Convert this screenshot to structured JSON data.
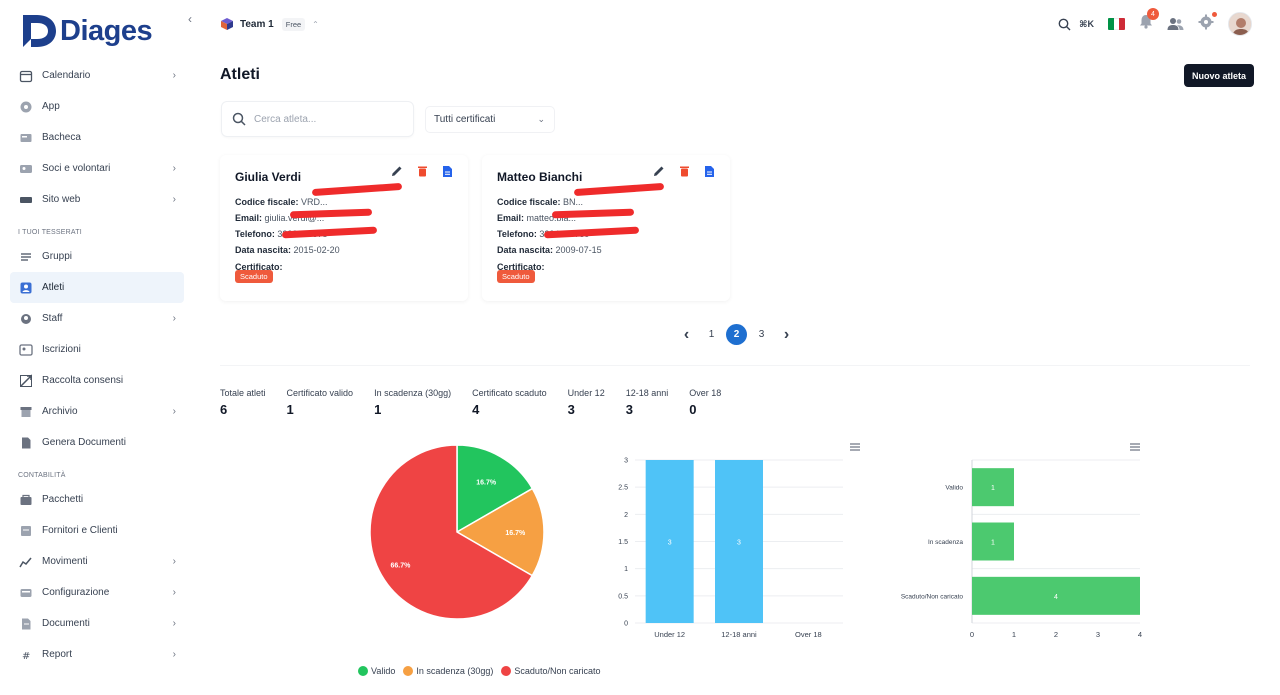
{
  "app": {
    "brand": "Diages"
  },
  "sidebar": {
    "collapse_icon": "chevron-left-icon",
    "items_top": [
      {
        "label": "Calendario",
        "icon": "calendar-icon",
        "has_children": true
      },
      {
        "label": "App",
        "icon": "app-icon",
        "has_children": false
      },
      {
        "label": "Bacheca",
        "icon": "board-icon",
        "has_children": false
      },
      {
        "label": "Soci e volontari",
        "icon": "users-icon",
        "has_children": true
      },
      {
        "label": "Sito web",
        "icon": "globe-icon",
        "has_children": true
      }
    ],
    "section_tesserati": "I TUOI TESSERATI",
    "items_tesserati": [
      {
        "label": "Gruppi",
        "icon": "groups-icon",
        "has_children": false,
        "active": false
      },
      {
        "label": "Atleti",
        "icon": "athlete-icon",
        "has_children": false,
        "active": true
      },
      {
        "label": "Staff",
        "icon": "staff-icon",
        "has_children": true,
        "active": false
      },
      {
        "label": "Iscrizioni",
        "icon": "registration-icon",
        "has_children": false,
        "active": false
      },
      {
        "label": "Raccolta consensi",
        "icon": "consent-icon",
        "has_children": false,
        "active": false
      },
      {
        "label": "Archivio",
        "icon": "archive-icon",
        "has_children": true,
        "active": false
      },
      {
        "label": "Genera Documenti",
        "icon": "document-icon",
        "has_children": false,
        "active": false
      }
    ],
    "section_contabilita": "CONTABILITÀ",
    "items_contabilita": [
      {
        "label": "Pacchetti",
        "icon": "package-icon",
        "has_children": false
      },
      {
        "label": "Fornitori e Clienti",
        "icon": "suppliers-icon",
        "has_children": false
      },
      {
        "label": "Movimenti",
        "icon": "transactions-icon",
        "has_children": true
      },
      {
        "label": "Configurazione",
        "icon": "config-icon",
        "has_children": true
      },
      {
        "label": "Documenti",
        "icon": "documents-icon",
        "has_children": true
      },
      {
        "label": "Report",
        "icon": "report-icon",
        "has_children": true
      }
    ]
  },
  "topbar": {
    "team_name": "Team 1",
    "plan": "Free",
    "shortcut": "⌘K",
    "notifications_count": "4",
    "colors": {
      "flag_green": "#009246",
      "flag_white": "#ffffff",
      "flag_red": "#ce2b37",
      "badge": "#ef5a3c"
    }
  },
  "main": {
    "title": "Atleti",
    "new_button": "Nuovo atleta",
    "search_placeholder": "Cerca atleta...",
    "filter_value": "Tutti certificati",
    "labels": {
      "codice_fiscale": "Codice fiscale:",
      "email": "Email:",
      "telefono": "Telefono:",
      "data_nascita": "Data nascita:",
      "certificato": "Certificato:"
    },
    "cards": [
      {
        "name": "Giulia Verdi",
        "codice_fiscale": "VRD...",
        "email": "giulia.verdi@...",
        "telefono": "3333345678",
        "data_nascita": "2015-02-20",
        "certificato": "Scaduto"
      },
      {
        "name": "Matteo Bianchi",
        "codice_fiscale": "BN...",
        "email": "matteo.bia...",
        "telefono": "3334456789",
        "data_nascita": "2009-07-15",
        "certificato": "Scaduto"
      }
    ],
    "pagination": {
      "pages": [
        "1",
        "2",
        "3"
      ],
      "current": "2"
    },
    "stats": [
      {
        "label": "Totale atleti",
        "value": "6"
      },
      {
        "label": "Certificato valido",
        "value": "1"
      },
      {
        "label": "In scadenza (30gg)",
        "value": "1"
      },
      {
        "label": "Certificato scaduto",
        "value": "4"
      },
      {
        "label": "Under 12",
        "value": "3"
      },
      {
        "label": "12-18 anni",
        "value": "3"
      },
      {
        "label": "Over 18",
        "value": "0"
      }
    ]
  },
  "chart_data": [
    {
      "type": "pie",
      "labels": [
        "Valido",
        "In scadenza (30gg)",
        "Scaduto/Non caricato"
      ],
      "values": [
        16.7,
        16.7,
        66.7
      ],
      "data_labels": [
        "16.7%",
        "16.7%",
        "66.7%"
      ],
      "colors": [
        "#22c55e",
        "#f6a043",
        "#ef4444"
      ],
      "legend": "bottom"
    },
    {
      "type": "bar",
      "categories": [
        "Under 12",
        "12-18 anni",
        "Over 18"
      ],
      "values": [
        3,
        3,
        0
      ],
      "ylim": [
        0,
        3
      ],
      "yticks": [
        "0",
        "0.5",
        "1",
        "1.5",
        "2",
        "2.5",
        "3"
      ],
      "color": "#4fc3f7",
      "grid": true
    },
    {
      "type": "bar",
      "orientation": "horizontal",
      "categories": [
        "Valido",
        "In scadenza",
        "Scaduto/Non caricato"
      ],
      "values": [
        1,
        1,
        4
      ],
      "xlim": [
        0,
        4
      ],
      "xticks": [
        "0",
        "1",
        "2",
        "3",
        "4"
      ],
      "color": "#4cc96f",
      "grid": true
    }
  ]
}
